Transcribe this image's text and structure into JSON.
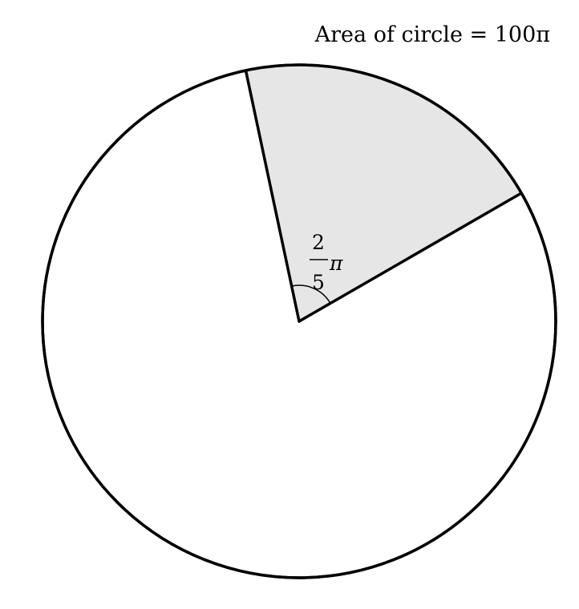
{
  "diagram": {
    "area_label": "Area of circle = 100π",
    "angle_label": {
      "numerator": "2",
      "denominator": "5",
      "symbol": "π"
    },
    "sector_angle_fraction_of_pi": 0.4,
    "colors": {
      "stroke": "#000000",
      "sector_fill": "#e6e6e6",
      "background": "#ffffff"
    }
  }
}
